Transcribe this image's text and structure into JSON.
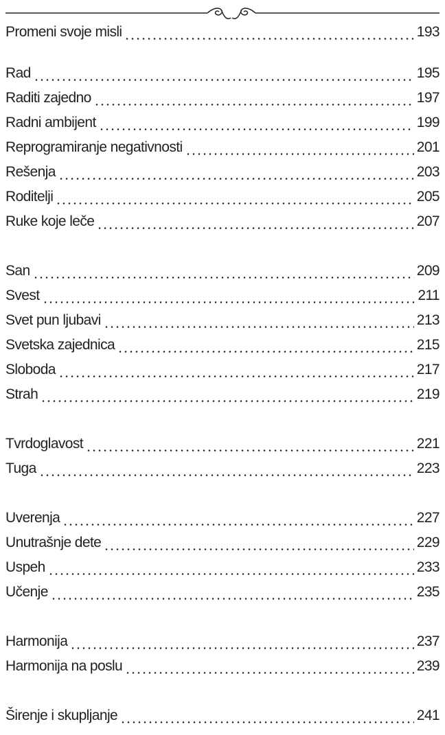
{
  "toc": {
    "groups": [
      [
        {
          "title": "Promeni svoje misli",
          "page": 193
        }
      ],
      [
        {
          "title": "Rad",
          "page": 195
        },
        {
          "title": "Raditi zajedno",
          "page": 197
        },
        {
          "title": "Radni ambijent",
          "page": 199
        },
        {
          "title": "Reprogramiranje negativnosti",
          "page": 201
        },
        {
          "title": "Rešenja",
          "page": 203
        },
        {
          "title": "Roditelji",
          "page": 205
        },
        {
          "title": "Ruke koje leče",
          "page": 207
        }
      ],
      [
        {
          "title": "San",
          "page": 209
        },
        {
          "title": "Svest",
          "page": 211
        },
        {
          "title": "Svet pun ljubavi",
          "page": 213
        },
        {
          "title": "Svetska zajednica",
          "page": 215
        },
        {
          "title": "Sloboda",
          "page": 217
        },
        {
          "title": "Strah",
          "page": 219
        }
      ],
      [
        {
          "title": "Tvrdoglavost",
          "page": 221
        },
        {
          "title": "Tuga",
          "page": 223
        }
      ],
      [
        {
          "title": "Uverenja",
          "page": 227
        },
        {
          "title": "Unutrašnje dete",
          "page": 229
        },
        {
          "title": "Uspeh",
          "page": 233
        },
        {
          "title": "Učenje",
          "page": 235
        }
      ],
      [
        {
          "title": "Harmonija",
          "page": 237
        },
        {
          "title": "Harmonija na poslu",
          "page": 239
        }
      ],
      [
        {
          "title": "Širenje i skupljanje",
          "page": 241
        }
      ]
    ]
  }
}
